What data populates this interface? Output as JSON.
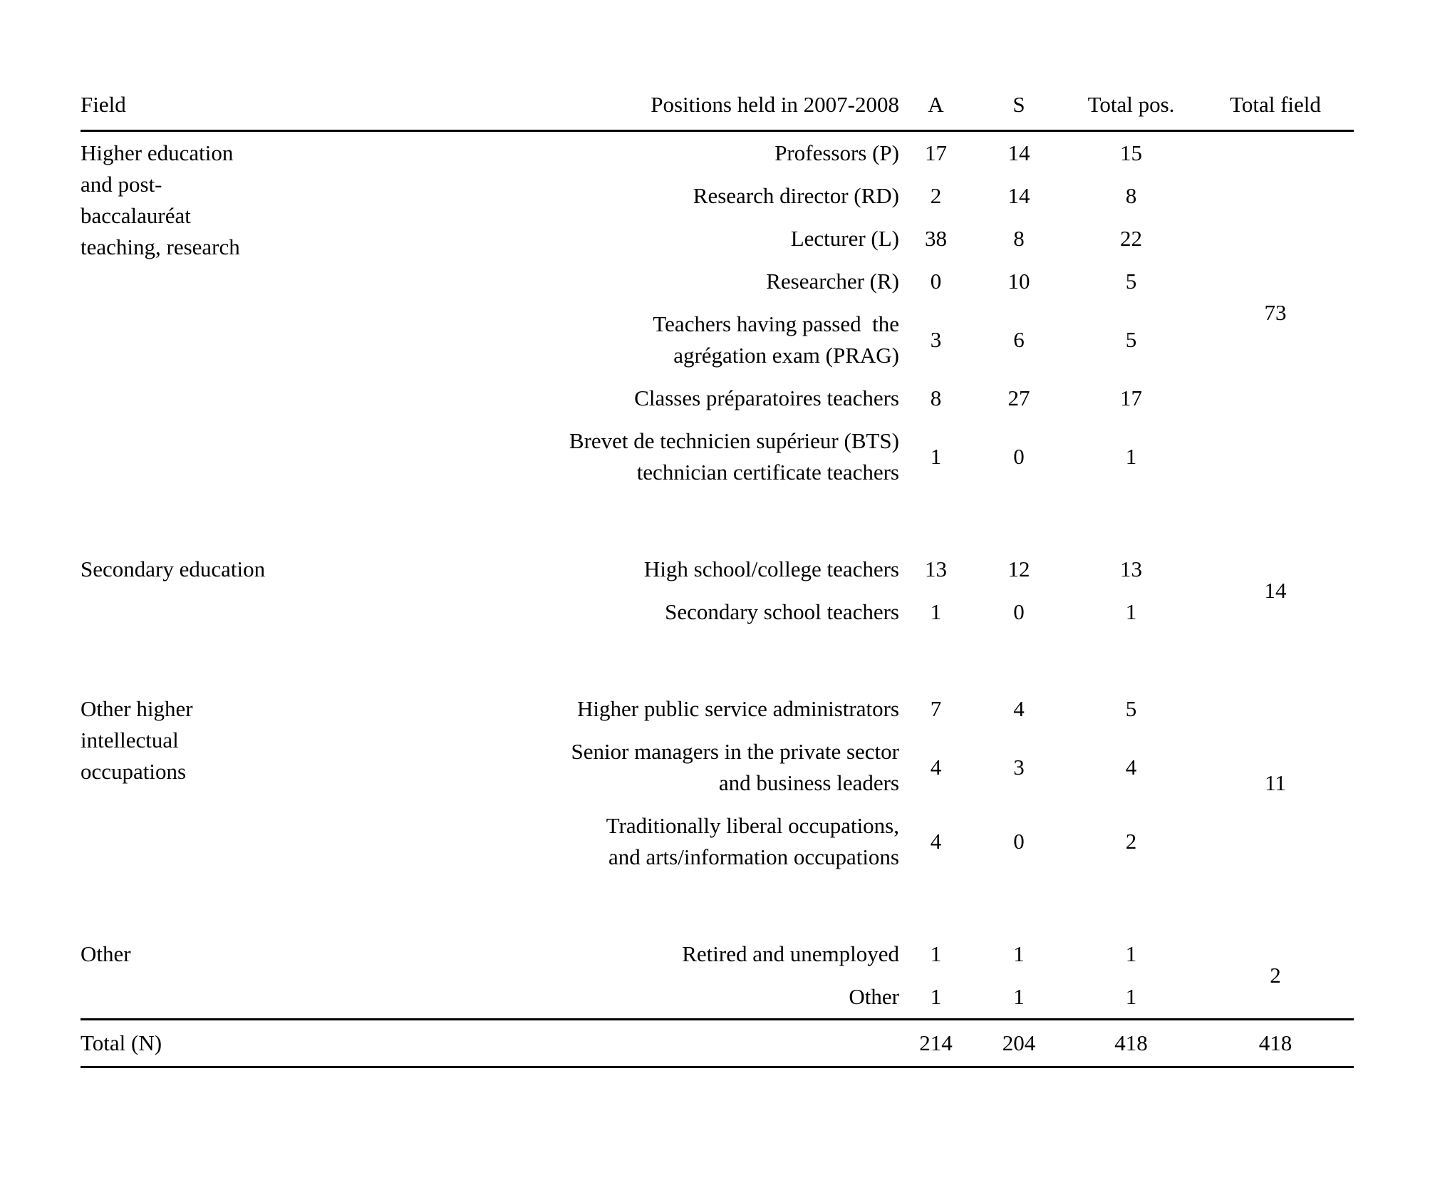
{
  "table": {
    "headers": {
      "field": "Field",
      "position": "Positions held in 2007-2008",
      "a": "A",
      "s": "S",
      "total_pos": "Total pos.",
      "total_field": "Total field"
    },
    "groups": [
      {
        "field": "Higher education\nand post-\nbaccalauréat\nteaching, research",
        "total_field": "73",
        "rows": [
          {
            "position": "Professors (P)",
            "a": "17",
            "s": "14",
            "total_pos": "15"
          },
          {
            "position": "Research director (RD)",
            "a": "2",
            "s": "14",
            "total_pos": "8"
          },
          {
            "position": "Lecturer (L)",
            "a": "38",
            "s": "8",
            "total_pos": "22"
          },
          {
            "position": "Researcher (R)",
            "a": "0",
            "s": "10",
            "total_pos": "5"
          },
          {
            "position": "Teachers having passed  the\nagrégation exam (PRAG)",
            "a": "3",
            "s": "6",
            "total_pos": "5"
          },
          {
            "position": "Classes préparatoires teachers",
            "a": "8",
            "s": "27",
            "total_pos": "17"
          },
          {
            "position": "Brevet de technicien supérieur (BTS)\ntechnician certificate teachers",
            "a": "1",
            "s": "0",
            "total_pos": "1"
          }
        ]
      },
      {
        "field": "Secondary education",
        "total_field": "14",
        "rows": [
          {
            "position": "High school/college teachers",
            "a": "13",
            "s": "12",
            "total_pos": "13"
          },
          {
            "position": "Secondary school teachers",
            "a": "1",
            "s": "0",
            "total_pos": "1"
          }
        ]
      },
      {
        "field": "Other higher\nintellectual\noccupations",
        "total_field": "11",
        "rows": [
          {
            "position": "Higher public service administrators",
            "a": "7",
            "s": "4",
            "total_pos": "5"
          },
          {
            "position": "Senior managers in the private sector\nand business leaders",
            "a": "4",
            "s": "3",
            "total_pos": "4"
          },
          {
            "position": "Traditionally liberal occupations,\nand arts/information occupations",
            "a": "4",
            "s": "0",
            "total_pos": "2"
          }
        ]
      },
      {
        "field": "Other",
        "total_field": "2",
        "rows": [
          {
            "position": "Retired and unemployed",
            "a": "1",
            "s": "1",
            "total_pos": "1"
          },
          {
            "position": "Other",
            "a": "1",
            "s": "1",
            "total_pos": "1"
          }
        ]
      }
    ],
    "total_row": {
      "label": "Total (N)",
      "a": "214",
      "s": "204",
      "total_pos": "418",
      "total_field": "418"
    }
  }
}
